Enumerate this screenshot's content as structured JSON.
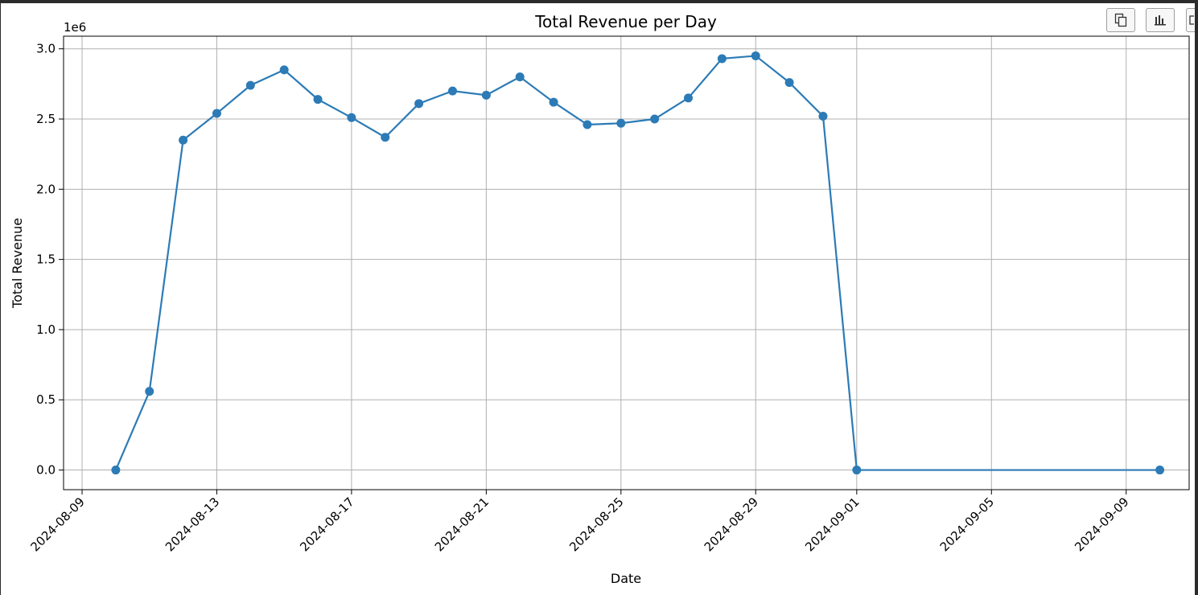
{
  "toolbar": {
    "buttons": [
      {
        "name": "copy-button",
        "icon": "copy-icon"
      },
      {
        "name": "chart-button",
        "icon": "bar-chart-icon"
      },
      {
        "name": "more-button",
        "icon": "square-icon"
      }
    ]
  },
  "chart_data": {
    "type": "line",
    "title": "Total Revenue per Day",
    "xlabel": "Date",
    "ylabel": "Total Revenue",
    "y_offset_label": "1e6",
    "grid": true,
    "color": "#2c7bb6",
    "ylim": [
      -0.14,
      3.09
    ],
    "xlim": [
      "2024-08-09",
      "2024-09-11"
    ],
    "xticks": [
      "2024-08-09",
      "2024-08-13",
      "2024-08-17",
      "2024-08-21",
      "2024-08-25",
      "2024-08-29",
      "2024-09-01",
      "2024-09-05",
      "2024-09-09"
    ],
    "yticks": [
      "0.0",
      "0.5",
      "1.0",
      "1.5",
      "2.0",
      "2.5",
      "3.0"
    ],
    "series": [
      {
        "x": [
          "2024-08-10",
          "2024-08-11",
          "2024-08-12",
          "2024-08-13",
          "2024-08-14",
          "2024-08-15",
          "2024-08-16",
          "2024-08-17",
          "2024-08-18",
          "2024-08-19",
          "2024-08-20",
          "2024-08-21",
          "2024-08-22",
          "2024-08-23",
          "2024-08-24",
          "2024-08-25",
          "2024-08-26",
          "2024-08-27",
          "2024-08-28",
          "2024-08-29",
          "2024-08-30",
          "2024-08-31",
          "2024-09-01",
          "2024-09-10"
        ],
        "y": [
          0.0,
          0.56,
          2.35,
          2.54,
          2.74,
          2.85,
          2.64,
          2.51,
          2.37,
          2.61,
          2.7,
          2.67,
          2.8,
          2.62,
          2.46,
          2.47,
          2.5,
          2.65,
          2.93,
          2.95,
          2.76,
          2.52,
          0.0,
          0.0
        ]
      }
    ]
  }
}
